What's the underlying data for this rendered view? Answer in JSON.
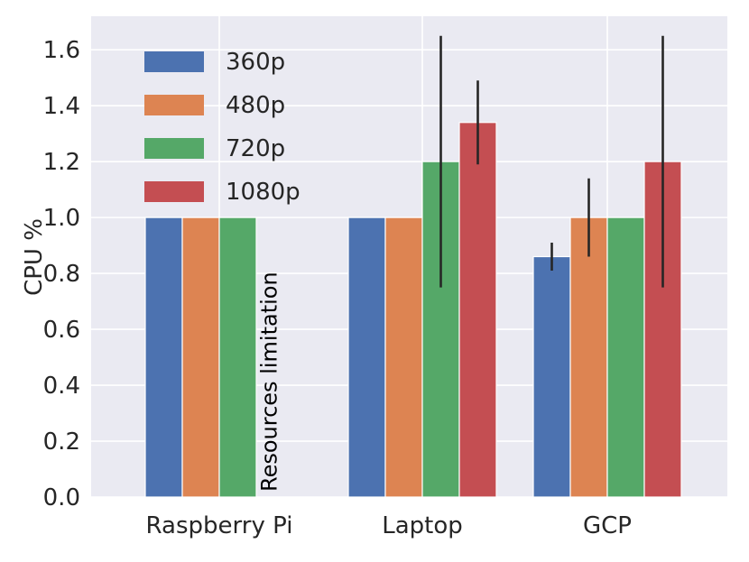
{
  "chart_data": {
    "type": "bar",
    "title": "",
    "xlabel": "",
    "ylabel": "CPU %",
    "ylim": [
      0,
      1.72
    ],
    "yticks": [
      0.0,
      0.2,
      0.4,
      0.6,
      0.8,
      1.0,
      1.2,
      1.4,
      1.6
    ],
    "ytick_labels": [
      "0.0",
      "0.2",
      "0.4",
      "0.6",
      "0.8",
      "1.0",
      "1.2",
      "1.4",
      "1.6"
    ],
    "categories": [
      "Raspberry Pi",
      "Laptop",
      "GCP"
    ],
    "grid": true,
    "legend_position": "top-left",
    "series": [
      {
        "name": "360p",
        "color": "#4c72b0",
        "values": [
          1.0,
          1.0,
          0.86
        ],
        "err_low": [
          null,
          null,
          0.81
        ],
        "err_high": [
          null,
          null,
          0.91
        ]
      },
      {
        "name": "480p",
        "color": "#dd8452",
        "values": [
          1.0,
          1.0,
          1.0
        ],
        "err_low": [
          null,
          null,
          0.86
        ],
        "err_high": [
          null,
          null,
          1.14
        ]
      },
      {
        "name": "720p",
        "color": "#55a868",
        "values": [
          1.0,
          1.2,
          1.0
        ],
        "err_low": [
          null,
          0.75,
          null
        ],
        "err_high": [
          null,
          1.65,
          null
        ]
      },
      {
        "name": "1080p",
        "color": "#c44e52",
        "values": [
          null,
          1.34,
          1.2
        ],
        "err_low": [
          null,
          1.19,
          0.75
        ],
        "err_high": [
          null,
          1.49,
          1.65
        ]
      }
    ],
    "annotations": [
      {
        "text": "Resources limitation",
        "category": "Raspberry Pi",
        "series": "1080p",
        "rotation": -90
      }
    ]
  }
}
